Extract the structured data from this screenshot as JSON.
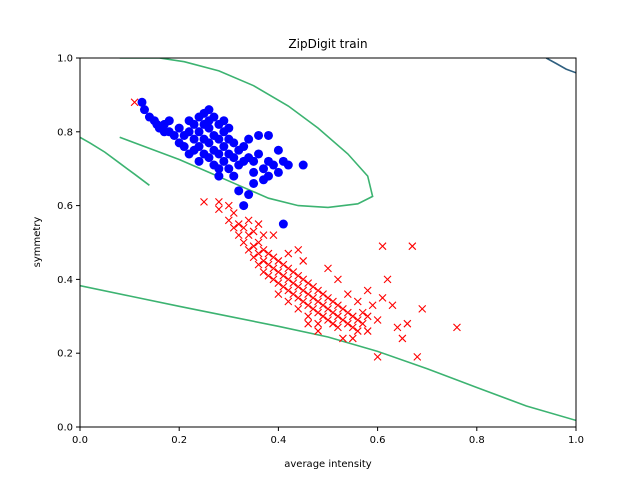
{
  "colors": {
    "class_a": "#0000ff",
    "class_b": "#ff0000",
    "contour_green": "#3cb371",
    "contour_dark": "#2f5f7f"
  },
  "chart_data": {
    "type": "scatter",
    "title": "ZipDigit train",
    "xlabel": "average intensity",
    "ylabel": "symmetry",
    "xlim": [
      0.0,
      1.0
    ],
    "ylim": [
      0.0,
      1.0
    ],
    "xticks": [
      "0.0",
      "0.2",
      "0.4",
      "0.6",
      "0.8",
      "1.0"
    ],
    "yticks": [
      "0.0",
      "0.2",
      "0.4",
      "0.6",
      "0.8",
      "1.0"
    ],
    "grid": false,
    "series": [
      {
        "marker": "circle",
        "color": "#0000ff",
        "points": [
          [
            0.125,
            0.88
          ],
          [
            0.13,
            0.86
          ],
          [
            0.14,
            0.84
          ],
          [
            0.15,
            0.83
          ],
          [
            0.155,
            0.82
          ],
          [
            0.16,
            0.81
          ],
          [
            0.17,
            0.82
          ],
          [
            0.18,
            0.8
          ],
          [
            0.19,
            0.79
          ],
          [
            0.2,
            0.81
          ],
          [
            0.2,
            0.77
          ],
          [
            0.21,
            0.79
          ],
          [
            0.21,
            0.76
          ],
          [
            0.22,
            0.8
          ],
          [
            0.22,
            0.74
          ],
          [
            0.23,
            0.82
          ],
          [
            0.23,
            0.78
          ],
          [
            0.23,
            0.75
          ],
          [
            0.24,
            0.84
          ],
          [
            0.24,
            0.8
          ],
          [
            0.24,
            0.76
          ],
          [
            0.24,
            0.72
          ],
          [
            0.25,
            0.85
          ],
          [
            0.25,
            0.82
          ],
          [
            0.25,
            0.78
          ],
          [
            0.25,
            0.74
          ],
          [
            0.26,
            0.86
          ],
          [
            0.26,
            0.81
          ],
          [
            0.26,
            0.77
          ],
          [
            0.26,
            0.73
          ],
          [
            0.27,
            0.84
          ],
          [
            0.27,
            0.79
          ],
          [
            0.27,
            0.75
          ],
          [
            0.27,
            0.71
          ],
          [
            0.28,
            0.82
          ],
          [
            0.28,
            0.78
          ],
          [
            0.28,
            0.74
          ],
          [
            0.28,
            0.7
          ],
          [
            0.29,
            0.8
          ],
          [
            0.29,
            0.76
          ],
          [
            0.29,
            0.72
          ],
          [
            0.3,
            0.78
          ],
          [
            0.3,
            0.74
          ],
          [
            0.3,
            0.7
          ],
          [
            0.31,
            0.77
          ],
          [
            0.31,
            0.73
          ],
          [
            0.32,
            0.75
          ],
          [
            0.32,
            0.71
          ],
          [
            0.33,
            0.76
          ],
          [
            0.33,
            0.72
          ],
          [
            0.34,
            0.78
          ],
          [
            0.34,
            0.73
          ],
          [
            0.35,
            0.72
          ],
          [
            0.35,
            0.69
          ],
          [
            0.36,
            0.79
          ],
          [
            0.36,
            0.74
          ],
          [
            0.37,
            0.7
          ],
          [
            0.38,
            0.72
          ],
          [
            0.38,
            0.68
          ],
          [
            0.39,
            0.71
          ],
          [
            0.4,
            0.75
          ],
          [
            0.4,
            0.69
          ],
          [
            0.41,
            0.72
          ],
          [
            0.42,
            0.71
          ],
          [
            0.45,
            0.71
          ],
          [
            0.28,
            0.68
          ],
          [
            0.31,
            0.68
          ],
          [
            0.32,
            0.64
          ],
          [
            0.33,
            0.6
          ],
          [
            0.34,
            0.63
          ],
          [
            0.35,
            0.66
          ],
          [
            0.37,
            0.67
          ],
          [
            0.38,
            0.79
          ],
          [
            0.41,
            0.55
          ],
          [
            0.22,
            0.83
          ],
          [
            0.18,
            0.83
          ],
          [
            0.17,
            0.8
          ],
          [
            0.26,
            0.83
          ],
          [
            0.29,
            0.83
          ],
          [
            0.3,
            0.81
          ]
        ]
      },
      {
        "marker": "x",
        "color": "#ff0000",
        "points": [
          [
            0.11,
            0.88
          ],
          [
            0.25,
            0.61
          ],
          [
            0.28,
            0.61
          ],
          [
            0.28,
            0.59
          ],
          [
            0.3,
            0.6
          ],
          [
            0.3,
            0.56
          ],
          [
            0.31,
            0.58
          ],
          [
            0.31,
            0.54
          ],
          [
            0.32,
            0.55
          ],
          [
            0.32,
            0.52
          ],
          [
            0.33,
            0.54
          ],
          [
            0.33,
            0.5
          ],
          [
            0.34,
            0.52
          ],
          [
            0.34,
            0.48
          ],
          [
            0.35,
            0.53
          ],
          [
            0.35,
            0.49
          ],
          [
            0.35,
            0.46
          ],
          [
            0.36,
            0.5
          ],
          [
            0.36,
            0.47
          ],
          [
            0.36,
            0.44
          ],
          [
            0.37,
            0.48
          ],
          [
            0.37,
            0.45
          ],
          [
            0.37,
            0.42
          ],
          [
            0.38,
            0.47
          ],
          [
            0.38,
            0.44
          ],
          [
            0.38,
            0.41
          ],
          [
            0.39,
            0.46
          ],
          [
            0.39,
            0.43
          ],
          [
            0.39,
            0.4
          ],
          [
            0.4,
            0.45
          ],
          [
            0.4,
            0.42
          ],
          [
            0.4,
            0.39
          ],
          [
            0.4,
            0.36
          ],
          [
            0.41,
            0.44
          ],
          [
            0.41,
            0.41
          ],
          [
            0.41,
            0.38
          ],
          [
            0.42,
            0.43
          ],
          [
            0.42,
            0.4
          ],
          [
            0.42,
            0.37
          ],
          [
            0.42,
            0.34
          ],
          [
            0.43,
            0.42
          ],
          [
            0.43,
            0.39
          ],
          [
            0.43,
            0.36
          ],
          [
            0.44,
            0.41
          ],
          [
            0.44,
            0.38
          ],
          [
            0.44,
            0.35
          ],
          [
            0.44,
            0.32
          ],
          [
            0.45,
            0.4
          ],
          [
            0.45,
            0.37
          ],
          [
            0.45,
            0.34
          ],
          [
            0.46,
            0.39
          ],
          [
            0.46,
            0.36
          ],
          [
            0.46,
            0.33
          ],
          [
            0.46,
            0.3
          ],
          [
            0.47,
            0.38
          ],
          [
            0.47,
            0.35
          ],
          [
            0.47,
            0.32
          ],
          [
            0.48,
            0.37
          ],
          [
            0.48,
            0.34
          ],
          [
            0.48,
            0.31
          ],
          [
            0.48,
            0.28
          ],
          [
            0.49,
            0.36
          ],
          [
            0.49,
            0.33
          ],
          [
            0.49,
            0.3
          ],
          [
            0.5,
            0.35
          ],
          [
            0.5,
            0.32
          ],
          [
            0.5,
            0.29
          ],
          [
            0.51,
            0.34
          ],
          [
            0.51,
            0.31
          ],
          [
            0.51,
            0.28
          ],
          [
            0.52,
            0.33
          ],
          [
            0.52,
            0.3
          ],
          [
            0.52,
            0.27
          ],
          [
            0.53,
            0.32
          ],
          [
            0.53,
            0.29
          ],
          [
            0.54,
            0.31
          ],
          [
            0.54,
            0.28
          ],
          [
            0.55,
            0.3
          ],
          [
            0.55,
            0.27
          ],
          [
            0.56,
            0.29
          ],
          [
            0.56,
            0.26
          ],
          [
            0.57,
            0.28
          ],
          [
            0.57,
            0.31
          ],
          [
            0.58,
            0.3
          ],
          [
            0.58,
            0.37
          ],
          [
            0.59,
            0.33
          ],
          [
            0.6,
            0.29
          ],
          [
            0.6,
            0.19
          ],
          [
            0.61,
            0.35
          ],
          [
            0.62,
            0.4
          ],
          [
            0.63,
            0.33
          ],
          [
            0.64,
            0.27
          ],
          [
            0.65,
            0.24
          ],
          [
            0.66,
            0.28
          ],
          [
            0.67,
            0.49
          ],
          [
            0.68,
            0.19
          ],
          [
            0.69,
            0.32
          ],
          [
            0.76,
            0.27
          ],
          [
            0.61,
            0.49
          ],
          [
            0.55,
            0.24
          ],
          [
            0.53,
            0.24
          ],
          [
            0.48,
            0.26
          ],
          [
            0.46,
            0.28
          ],
          [
            0.45,
            0.45
          ],
          [
            0.44,
            0.48
          ],
          [
            0.39,
            0.52
          ],
          [
            0.37,
            0.52
          ],
          [
            0.34,
            0.56
          ],
          [
            0.36,
            0.55
          ],
          [
            0.42,
            0.47
          ],
          [
            0.5,
            0.43
          ],
          [
            0.52,
            0.4
          ],
          [
            0.54,
            0.36
          ],
          [
            0.56,
            0.34
          ],
          [
            0.58,
            0.26
          ]
        ]
      }
    ],
    "contours": [
      {
        "color": "#3cb371",
        "points": [
          [
            0.08,
            0.785
          ],
          [
            0.14,
            0.755
          ],
          [
            0.2,
            0.725
          ],
          [
            0.26,
            0.69
          ],
          [
            0.32,
            0.655
          ],
          [
            0.38,
            0.62
          ],
          [
            0.44,
            0.6
          ],
          [
            0.5,
            0.595
          ],
          [
            0.56,
            0.605
          ],
          [
            0.59,
            0.625
          ],
          [
            0.58,
            0.68
          ],
          [
            0.54,
            0.74
          ],
          [
            0.48,
            0.81
          ],
          [
            0.42,
            0.87
          ],
          [
            0.35,
            0.925
          ],
          [
            0.28,
            0.965
          ],
          [
            0.21,
            0.99
          ],
          [
            0.16,
            1.0
          ],
          [
            0.08,
            1.0
          ]
        ]
      },
      {
        "color": "#3cb371",
        "points": [
          [
            0.0,
            0.785
          ],
          [
            0.02,
            0.77
          ],
          [
            0.05,
            0.745
          ],
          [
            0.08,
            0.715
          ],
          [
            0.11,
            0.685
          ],
          [
            0.14,
            0.655
          ]
        ]
      },
      {
        "color": "#3cb371",
        "points": [
          [
            0.0,
            0.383
          ],
          [
            0.1,
            0.355
          ],
          [
            0.2,
            0.327
          ],
          [
            0.3,
            0.3
          ],
          [
            0.4,
            0.273
          ],
          [
            0.5,
            0.244
          ],
          [
            0.6,
            0.205
          ],
          [
            0.7,
            0.158
          ],
          [
            0.8,
            0.107
          ],
          [
            0.9,
            0.057
          ],
          [
            1.0,
            0.018
          ]
        ]
      },
      {
        "color": "#2f5f7f",
        "points": [
          [
            0.94,
            1.0
          ],
          [
            0.96,
            0.985
          ],
          [
            0.98,
            0.97
          ],
          [
            1.0,
            0.96
          ]
        ]
      }
    ]
  }
}
